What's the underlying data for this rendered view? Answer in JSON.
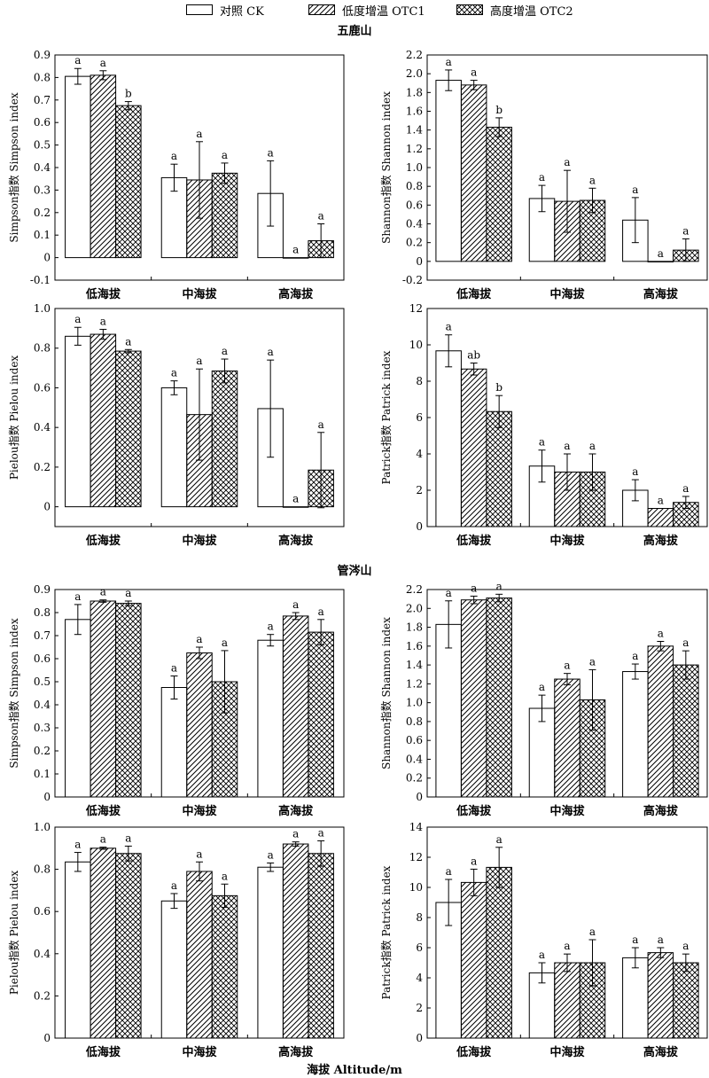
{
  "legend": {
    "items": [
      {
        "label": "对照 CK",
        "pattern": "none"
      },
      {
        "label": "低度增温 OTC1",
        "pattern": "hatch"
      },
      {
        "label": "高度增温 OTC2",
        "pattern": "cross"
      }
    ]
  },
  "sections": {
    "top_title": "五鹿山",
    "middle_title": "管涔山"
  },
  "bottom_xlabel": "海拔 Altitude/m",
  "chart_data": [
    {
      "type": "bar",
      "site": "五鹿山",
      "ylabel": "Simpson指数 Simpson index",
      "categories": [
        "低海拔",
        "中海拔",
        "高海拔"
      ],
      "ylim": [
        -0.1,
        0.9
      ],
      "yticks": [
        "-0.1",
        "0",
        "0.1",
        "0.2",
        "0.3",
        "0.4",
        "0.5",
        "0.6",
        "0.7",
        "0.8",
        "0.9"
      ],
      "series": [
        {
          "name": "对照 CK",
          "values": [
            0.805,
            0.355,
            0.285
          ],
          "errors": [
            0.035,
            0.06,
            0.145
          ],
          "letters": [
            "a",
            "a",
            "a"
          ]
        },
        {
          "name": "低度增温 OTC1",
          "values": [
            0.81,
            0.345,
            0.0
          ],
          "errors": [
            0.02,
            0.17,
            0.0
          ],
          "letters": [
            "a",
            "a",
            "a"
          ]
        },
        {
          "name": "高度增温 OTC2",
          "values": [
            0.675,
            0.375,
            0.075
          ],
          "errors": [
            0.018,
            0.045,
            0.075
          ],
          "letters": [
            "b",
            "a",
            "a"
          ]
        }
      ]
    },
    {
      "type": "bar",
      "site": "五鹿山",
      "ylabel": "Shannon指数 Shannon index",
      "categories": [
        "低海拔",
        "中海拔",
        "高海拔"
      ],
      "ylim": [
        -0.2,
        2.2
      ],
      "yticks": [
        "-0.2",
        "0",
        "0.2",
        "0.4",
        "0.6",
        "0.8",
        "1.0",
        "1.2",
        "1.4",
        "1.6",
        "1.8",
        "2.0",
        "2.2"
      ],
      "series": [
        {
          "name": "对照 CK",
          "values": [
            1.93,
            0.67,
            0.44
          ],
          "errors": [
            0.11,
            0.14,
            0.24
          ],
          "letters": [
            "a",
            "a",
            "a"
          ]
        },
        {
          "name": "低度增温 OTC1",
          "values": [
            1.88,
            0.64,
            0.0
          ],
          "errors": [
            0.05,
            0.33,
            0.0
          ],
          "letters": [
            "a",
            "a",
            "a"
          ]
        },
        {
          "name": "高度增温 OTC2",
          "values": [
            1.43,
            0.65,
            0.12
          ],
          "errors": [
            0.1,
            0.13,
            0.12
          ],
          "letters": [
            "b",
            "a",
            "a"
          ]
        }
      ]
    },
    {
      "type": "bar",
      "site": "五鹿山",
      "ylabel": "Pielou指数 Pielou index",
      "categories": [
        "低海拔",
        "中海拔",
        "高海拔"
      ],
      "ylim": [
        -0.1,
        1.0
      ],
      "yticks": [
        "0",
        "0.2",
        "0.4",
        "0.6",
        "0.8",
        "1.0"
      ],
      "series": [
        {
          "name": "对照 CK",
          "values": [
            0.86,
            0.6,
            0.495
          ],
          "errors": [
            0.045,
            0.035,
            0.245
          ],
          "letters": [
            "a",
            "a",
            "a"
          ]
        },
        {
          "name": "低度增温 OTC1",
          "values": [
            0.87,
            0.465,
            0.0
          ],
          "errors": [
            0.025,
            0.23,
            0.0
          ],
          "letters": [
            "a",
            "a",
            "a"
          ]
        },
        {
          "name": "高度增温 OTC2",
          "values": [
            0.785,
            0.685,
            0.185
          ],
          "errors": [
            0.008,
            0.06,
            0.19
          ],
          "letters": [
            "a",
            "a",
            "a"
          ]
        }
      ]
    },
    {
      "type": "bar",
      "site": "五鹿山",
      "ylabel": "Patrick指数 Patrick index",
      "categories": [
        "低海拔",
        "中海拔",
        "高海拔"
      ],
      "ylim": [
        0,
        12
      ],
      "yticks": [
        "0",
        "2",
        "4",
        "6",
        "8",
        "10",
        "12"
      ],
      "series": [
        {
          "name": "对照 CK",
          "values": [
            9.67,
            3.33,
            2.0
          ],
          "errors": [
            0.88,
            0.88,
            0.58
          ],
          "letters": [
            "a",
            "a",
            "a"
          ]
        },
        {
          "name": "低度增温 OTC1",
          "values": [
            8.67,
            3.0,
            1.0
          ],
          "errors": [
            0.33,
            1.0,
            0.0
          ],
          "letters": [
            "ab",
            "a",
            "a"
          ]
        },
        {
          "name": "高度增温 OTC2",
          "values": [
            6.33,
            3.0,
            1.33
          ],
          "errors": [
            0.88,
            1.0,
            0.33
          ],
          "letters": [
            "b",
            "a",
            "a"
          ]
        }
      ]
    },
    {
      "type": "bar",
      "site": "管涔山",
      "ylabel": "Simpson指数 Simpson index",
      "categories": [
        "低海拔",
        "中海拔",
        "高海拔"
      ],
      "ylim": [
        0,
        0.9
      ],
      "yticks": [
        "0",
        "0.1",
        "0.2",
        "0.3",
        "0.4",
        "0.5",
        "0.6",
        "0.7",
        "0.8",
        "0.9"
      ],
      "series": [
        {
          "name": "对照 CK",
          "values": [
            0.77,
            0.475,
            0.68
          ],
          "errors": [
            0.065,
            0.05,
            0.025
          ],
          "letters": [
            "a",
            "a",
            "a"
          ]
        },
        {
          "name": "低度增温 OTC1",
          "values": [
            0.85,
            0.625,
            0.785
          ],
          "errors": [
            0.005,
            0.025,
            0.015
          ],
          "letters": [
            "a",
            "a",
            "a"
          ]
        },
        {
          "name": "高度增温 OTC2",
          "values": [
            0.84,
            0.5,
            0.715
          ],
          "errors": [
            0.01,
            0.135,
            0.055
          ],
          "letters": [
            "a",
            "a",
            "a"
          ]
        }
      ]
    },
    {
      "type": "bar",
      "site": "管涔山",
      "ylabel": "Shannon指数 Shannon index",
      "categories": [
        "低海拔",
        "中海拔",
        "高海拔"
      ],
      "ylim": [
        0,
        2.2
      ],
      "yticks": [
        "0",
        "0.2",
        "0.4",
        "0.6",
        "0.8",
        "1.0",
        "1.2",
        "1.4",
        "1.6",
        "1.8",
        "2.0",
        "2.2"
      ],
      "series": [
        {
          "name": "对照 CK",
          "values": [
            1.83,
            0.94,
            1.33
          ],
          "errors": [
            0.25,
            0.14,
            0.08
          ],
          "letters": [
            "a",
            "a",
            "a"
          ]
        },
        {
          "name": "低度增温 OTC1",
          "values": [
            2.09,
            1.25,
            1.6
          ],
          "errors": [
            0.04,
            0.06,
            0.05
          ],
          "letters": [
            "a",
            "a",
            "a"
          ]
        },
        {
          "name": "高度增温 OTC2",
          "values": [
            2.11,
            1.03,
            1.4
          ],
          "errors": [
            0.04,
            0.32,
            0.15
          ],
          "letters": [
            "a",
            "a",
            "a"
          ]
        }
      ]
    },
    {
      "type": "bar",
      "site": "管涔山",
      "ylabel": "Pielou指数 Pielou index",
      "categories": [
        "低海拔",
        "中海拔",
        "高海拔"
      ],
      "ylim": [
        0,
        1.0
      ],
      "yticks": [
        "0",
        "0.2",
        "0.4",
        "0.6",
        "0.8",
        "1.0"
      ],
      "series": [
        {
          "name": "对照 CK",
          "values": [
            0.835,
            0.65,
            0.81
          ],
          "errors": [
            0.045,
            0.035,
            0.02
          ],
          "letters": [
            "a",
            "a",
            "a"
          ]
        },
        {
          "name": "低度增温 OTC1",
          "values": [
            0.9,
            0.79,
            0.92
          ],
          "errors": [
            0.005,
            0.045,
            0.01
          ],
          "letters": [
            "a",
            "a",
            "a"
          ]
        },
        {
          "name": "高度增温 OTC2",
          "values": [
            0.875,
            0.675,
            0.875
          ],
          "errors": [
            0.035,
            0.055,
            0.06
          ],
          "letters": [
            "a",
            "a",
            "a"
          ]
        }
      ]
    },
    {
      "type": "bar",
      "site": "管涔山",
      "ylabel": "Patrick指数 Patrick index",
      "categories": [
        "低海拔",
        "中海拔",
        "高海拔"
      ],
      "ylim": [
        0,
        14
      ],
      "yticks": [
        "0",
        "2",
        "4",
        "6",
        "8",
        "10",
        "12",
        "14"
      ],
      "series": [
        {
          "name": "对照 CK",
          "values": [
            9.0,
            4.33,
            5.33
          ],
          "errors": [
            1.53,
            0.67,
            0.67
          ],
          "letters": [
            "a",
            "a",
            "a"
          ]
        },
        {
          "name": "低度增温 OTC1",
          "values": [
            10.33,
            5.0,
            5.67
          ],
          "errors": [
            0.88,
            0.58,
            0.33
          ],
          "letters": [
            "a",
            "a",
            "a"
          ]
        },
        {
          "name": "高度增温 OTC2",
          "values": [
            11.33,
            5.0,
            5.0
          ],
          "errors": [
            1.33,
            1.53,
            0.58
          ],
          "letters": [
            "a",
            "a",
            "a"
          ]
        }
      ]
    }
  ]
}
